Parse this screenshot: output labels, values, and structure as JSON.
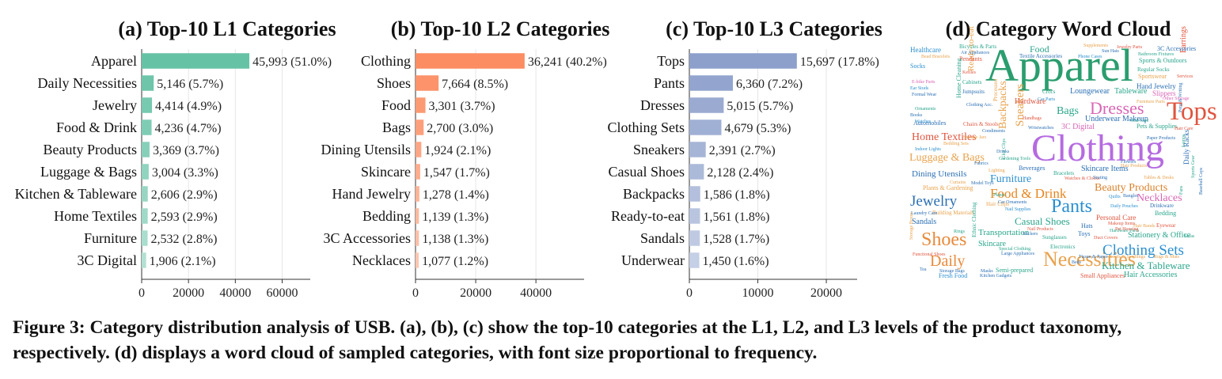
{
  "chart_data": [
    {
      "type": "bar",
      "orientation": "horizontal",
      "title": "(a) Top-10 L1 Categories",
      "color": "#66c2a5",
      "categories": [
        "Apparel",
        "Daily Necessities",
        "Jewelry",
        "Food & Drink",
        "Beauty Products",
        "Luggage & Bags",
        "Kitchen & Tableware",
        "Home Textiles",
        "Furniture",
        "3C Digital"
      ],
      "values": [
        45993,
        5146,
        4414,
        4236,
        3369,
        3004,
        2606,
        2593,
        2532,
        1906
      ],
      "value_labels": [
        "45,993 (51.0%)",
        "5,146 (5.7%)",
        "4,414 (4.9%)",
        "4,236 (4.7%)",
        "3,369 (3.7%)",
        "3,004 (3.3%)",
        "2,606 (2.9%)",
        "2,593 (2.9%)",
        "2,532 (2.8%)",
        "1,906 (2.1%)"
      ],
      "xlim": [
        0,
        72000
      ],
      "xticks": [
        0,
        20000,
        40000,
        60000
      ],
      "grid": true
    },
    {
      "type": "bar",
      "orientation": "horizontal",
      "title": "(b) Top-10 L2 Categories",
      "color": "#fc8d62",
      "categories": [
        "Clothing",
        "Shoes",
        "Food",
        "Bags",
        "Dining Utensils",
        "Skincare",
        "Hand Jewelry",
        "Bedding",
        "3C Accessories",
        "Necklaces"
      ],
      "values": [
        36241,
        7664,
        3301,
        2700,
        1924,
        1547,
        1278,
        1139,
        1138,
        1077
      ],
      "value_labels": [
        "36,241 (40.2%)",
        "7,664 (8.5%)",
        "3,301 (3.7%)",
        "2,700 (3.0%)",
        "1,924 (2.1%)",
        "1,547 (1.7%)",
        "1,278 (1.4%)",
        "1,139 (1.3%)",
        "1,138 (1.3%)",
        "1,077 (1.2%)"
      ],
      "xlim": [
        0,
        56000
      ],
      "xticks": [
        0,
        20000,
        40000
      ],
      "grid": true
    },
    {
      "type": "bar",
      "orientation": "horizontal",
      "title": "(c) Top-10 L3 Categories",
      "color": "#8da0cb",
      "categories": [
        "Tops",
        "Pants",
        "Dresses",
        "Clothing Sets",
        "Sneakers",
        "Casual Shoes",
        "Backpacks",
        "Ready-to-eat",
        "Sandals",
        "Underwear"
      ],
      "values": [
        15697,
        6360,
        5015,
        4679,
        2391,
        2128,
        1586,
        1561,
        1528,
        1450
      ],
      "value_labels": [
        "15,697 (17.8%)",
        "6,360 (7.2%)",
        "5,015 (5.7%)",
        "4,679 (5.3%)",
        "2,391 (2.7%)",
        "2,128 (2.4%)",
        "1,586 (1.8%)",
        "1,561 (1.8%)",
        "1,528 (1.7%)",
        "1,450 (1.6%)"
      ],
      "xlim": [
        0,
        24500
      ],
      "xticks": [
        0,
        10000,
        20000
      ],
      "grid": true
    },
    {
      "type": "wordcloud",
      "title": "(d) Category Word Cloud",
      "words": [
        {
          "text": "Apparel",
          "color": "#2a9d6e",
          "rot": 0
        },
        {
          "text": "Clothing",
          "color": "#b56be0",
          "rot": 0
        },
        {
          "text": "Tops",
          "color": "#e0553f",
          "rot": 0
        },
        {
          "text": "Necessities",
          "color": "#e8a24d",
          "rot": 0
        },
        {
          "text": "Dresses",
          "color": "#d966b5",
          "rot": 0
        },
        {
          "text": "Shoes",
          "color": "#e88a3a",
          "rot": 0
        },
        {
          "text": "Pants",
          "color": "#2b8fcf",
          "rot": 0
        },
        {
          "text": "Clothing Sets",
          "color": "#2b8fcf",
          "rot": 0
        },
        {
          "text": "Daily",
          "color": "#e88a3a",
          "rot": 0
        },
        {
          "text": "Jewelry",
          "color": "#2b6fb3",
          "rot": 0
        },
        {
          "text": "Food & Drink",
          "color": "#e8851f",
          "rot": 0
        },
        {
          "text": "Beauty Products",
          "color": "#d9822b",
          "rot": 0
        },
        {
          "text": "Home Textiles",
          "color": "#e0553f",
          "rot": 0
        },
        {
          "text": "Luggage & Bags",
          "color": "#e8a24d",
          "rot": 0
        },
        {
          "text": "Kitchen & Tableware",
          "color": "#2aa58c",
          "rot": 0
        },
        {
          "text": "Furniture",
          "color": "#2b8fcf",
          "rot": 0
        },
        {
          "text": "Bags",
          "color": "#2aa58c",
          "rot": 0
        },
        {
          "text": "Casual Shoes",
          "color": "#2aa58c",
          "rot": 0
        },
        {
          "text": "Necklaces",
          "color": "#d966b5",
          "rot": 0
        },
        {
          "text": "Dining Utensils",
          "color": "#2b6fb3",
          "rot": 0
        },
        {
          "text": "Sneakers",
          "color": "#e8a24d",
          "rot": -90
        },
        {
          "text": "Backpacks",
          "color": "#e8a24d",
          "rot": -90
        },
        {
          "text": "Food",
          "color": "#2aa58c",
          "rot": 0
        },
        {
          "text": "Transportation",
          "color": "#2aa58c",
          "rot": 0
        },
        {
          "text": "Stationery & Office",
          "color": "#2aa58c",
          "rot": 0
        },
        {
          "text": "Hair Accessories",
          "color": "#2aa58c",
          "rot": 0
        },
        {
          "text": "Underwear",
          "color": "#2b6fb3",
          "rot": 0
        },
        {
          "text": "3C Digital",
          "color": "#d966b5",
          "rot": 0
        },
        {
          "text": "Loungewear",
          "color": "#2b6fb3",
          "rot": 0
        },
        {
          "text": "Tableware",
          "color": "#2aa58c",
          "rot": 0
        },
        {
          "text": "Skincare",
          "color": "#2aa58c",
          "rot": 0
        },
        {
          "text": "Skincare Items",
          "color": "#2b6fb3",
          "rot": 0
        },
        {
          "text": "Hardware",
          "color": "#e0553f",
          "rot": 0
        },
        {
          "text": "Sandals",
          "color": "#2b6fb3",
          "rot": 0
        },
        {
          "text": "Healthcare",
          "color": "#2b8fcf",
          "rot": 0
        },
        {
          "text": "Hand Jewelry",
          "color": "#2b6fb3",
          "rot": 0
        },
        {
          "text": "Sportswear",
          "color": "#e8a24d",
          "rot": 0
        },
        {
          "text": "Personal Care",
          "color": "#e0553f",
          "rot": 0
        },
        {
          "text": "Bedding",
          "color": "#2aa58c",
          "rot": 0
        },
        {
          "text": "Ready-to-eat",
          "color": "#e8a24d",
          "rot": -90
        },
        {
          "text": "Beverages",
          "color": "#2b6fb3",
          "rot": 0
        },
        {
          "text": "Plants & Gardening",
          "color": "#e8a24d",
          "rot": 0
        },
        {
          "text": "Pets & Supplies",
          "color": "#2aa58c",
          "rot": 0
        },
        {
          "text": "Sports & Outdoors",
          "color": "#2aa58c",
          "rot": 0
        },
        {
          "text": "Earrings",
          "color": "#e0553f",
          "rot": -90
        },
        {
          "text": "Pendants",
          "color": "#e0553f",
          "rot": 0
        },
        {
          "text": "Socks",
          "color": "#2b8fcf",
          "rot": 0
        },
        {
          "text": "Regular Socks",
          "color": "#2aa58c",
          "rot": 0
        },
        {
          "text": "Slippers",
          "color": "#d966b5",
          "rot": 0
        },
        {
          "text": "Underwear Makeup",
          "color": "#2b6fb3",
          "rot": 0
        },
        {
          "text": "Automobiles",
          "color": "#2b6fb3",
          "rot": 0
        },
        {
          "text": "Fresh Food",
          "color": "#2b8fcf",
          "rot": 0
        },
        {
          "text": "Small Appliances",
          "color": "#e0553f",
          "rot": 0
        },
        {
          "text": "Semi-prepared",
          "color": "#2aa58c",
          "rot": 0
        },
        {
          "text": "Electronics",
          "color": "#2aa58c",
          "rot": 0
        },
        {
          "text": "Sunglasses",
          "color": "#2aa58c",
          "rot": 0
        },
        {
          "text": "Toys",
          "color": "#2b6fb3",
          "rot": 0
        },
        {
          "text": "Hats",
          "color": "#2b6fb3",
          "rot": 0
        },
        {
          "text": "Building Materials",
          "color": "#e8a24d",
          "rot": 0
        },
        {
          "text": "Laundry Care",
          "color": "#2b6fb3",
          "rot": 0
        },
        {
          "text": "Hair Clips",
          "color": "#e8a24d",
          "rot": 0
        },
        {
          "text": "Bracelets",
          "color": "#2aa58c",
          "rot": 0
        },
        {
          "text": "Fabrics",
          "color": "#2b6fb3",
          "rot": 0
        },
        {
          "text": "Lighting",
          "color": "#e8a24d",
          "rot": 0
        },
        {
          "text": "Indoor Lights",
          "color": "#2b8fcf",
          "rot": 0
        },
        {
          "text": "Bedding Sets",
          "color": "#e8a24d",
          "rot": 0
        },
        {
          "text": "Home Cleaning",
          "color": "#2aa58c",
          "rot": -90
        },
        {
          "text": "3C Accessories",
          "color": "#2b6fb3",
          "rot": 0
        },
        {
          "text": "Bicycles & Parts",
          "color": "#2aa58c",
          "rot": 0
        },
        {
          "text": "Supplements",
          "color": "#e8a24d",
          "rot": 0
        },
        {
          "text": "Jewelry Parts",
          "color": "#e0553f",
          "rot": 0
        },
        {
          "text": "Textile Accessories",
          "color": "#2b6fb3",
          "rot": 0
        },
        {
          "text": "Phone Cases",
          "color": "#2b8fcf",
          "rot": 0
        },
        {
          "text": "Cabinets",
          "color": "#2aa58c",
          "rot": 0
        },
        {
          "text": "Jumpsuits",
          "color": "#2b6fb3",
          "rot": 0
        },
        {
          "text": "Crocs",
          "color": "#2aa58c",
          "rot": 0
        },
        {
          "text": "Car Parts",
          "color": "#2b8fcf",
          "rot": 0
        },
        {
          "text": "Chairs & Stools",
          "color": "#e0553f",
          "rot": 0
        },
        {
          "text": "Storage Jars",
          "color": "#e8a24d",
          "rot": 0
        },
        {
          "text": "Handbags",
          "color": "#e0553f",
          "rot": 0
        },
        {
          "text": "Condiments",
          "color": "#2b6fb3",
          "rot": 0
        },
        {
          "text": "Wristwatches",
          "color": "#2b6fb3",
          "rot": 0
        },
        {
          "text": "Kettles",
          "color": "#e0553f",
          "rot": 0
        },
        {
          "text": "E-bike Parts",
          "color": "#d966b5",
          "rot": 0
        },
        {
          "text": "Ear Studs",
          "color": "#2b8fcf",
          "rot": 0
        },
        {
          "text": "Formal Wear",
          "color": "#2b6fb3",
          "rot": 0
        },
        {
          "text": "Ornaments",
          "color": "#2aa58c",
          "rot": 0
        },
        {
          "text": "Books",
          "color": "#2b6fb3",
          "rot": 0
        },
        {
          "text": "Watches",
          "color": "#2b8fcf",
          "rot": 0
        },
        {
          "text": "Bead Bracelets",
          "color": "#e8a24d",
          "rot": 0
        },
        {
          "text": "Air Appliances",
          "color": "#2b6fb3",
          "rot": 0
        },
        {
          "text": "Bathroom Fixtures",
          "color": "#2aa58c",
          "rot": 0
        },
        {
          "text": "Sun Hats",
          "color": "#2b6fb3",
          "rot": 0
        },
        {
          "text": "Services",
          "color": "#e0553f",
          "rot": 0
        },
        {
          "text": "Furniture Parts",
          "color": "#e8a24d",
          "rot": 0
        },
        {
          "text": "Other Storage",
          "color": "#d966b5",
          "rot": 0
        },
        {
          "text": "Oral Care",
          "color": "#2aa58c",
          "rot": 0
        },
        {
          "text": "Hair Care",
          "color": "#e0553f",
          "rot": 0
        },
        {
          "text": "Paper Products",
          "color": "#2b6fb3",
          "rot": 0
        },
        {
          "text": "Pens & Writing",
          "color": "#2b6fb3",
          "rot": -90
        },
        {
          "text": "Hair Products",
          "color": "#e8a24d",
          "rot": 0
        },
        {
          "text": "Daily Racks",
          "color": "#2b6fb3",
          "rot": -90
        },
        {
          "text": "Tables & Desks",
          "color": "#e8a24d",
          "rot": 0
        },
        {
          "text": "Curtains",
          "color": "#e8a24d",
          "rot": 0
        },
        {
          "text": "Model Toys",
          "color": "#2b6fb3",
          "rot": 0
        },
        {
          "text": "Gardening Tools",
          "color": "#2aa58c",
          "rot": 0
        },
        {
          "text": "Drinkware",
          "color": "#2b6fb3",
          "rot": 0
        },
        {
          "text": "Daily Pouches",
          "color": "#2b8fcf",
          "rot": 0
        },
        {
          "text": "Bangles",
          "color": "#2b6fb3",
          "rot": 0
        },
        {
          "text": "Quilts",
          "color": "#2b8fcf",
          "rot": 0
        },
        {
          "text": "Hardware Parts",
          "color": "#2aa58c",
          "rot": 0
        },
        {
          "text": "Nail Products",
          "color": "#e0553f",
          "rot": 0
        },
        {
          "text": "Special Clothing",
          "color": "#2aa58c",
          "rot": 0
        },
        {
          "text": "Functional Shoes",
          "color": "#e0553f",
          "rot": 0
        },
        {
          "text": "Storage Boxes",
          "color": "#e8a24d",
          "rot": -90
        },
        {
          "text": "Storage Bags",
          "color": "#2b6fb3",
          "rot": 0
        },
        {
          "text": "Masks",
          "color": "#2b6fb3",
          "rot": 0
        },
        {
          "text": "Kitchen Gadgets",
          "color": "#2b6fb3",
          "rot": 0
        },
        {
          "text": "Large Appliances",
          "color": "#2b6fb3",
          "rot": 0
        },
        {
          "text": "Tissue & Paper",
          "color": "#2b6fb3",
          "rot": 0
        },
        {
          "text": "Seeds & Seedlings",
          "color": "#e8a24d",
          "rot": 0
        },
        {
          "text": "Rugs & Mats",
          "color": "#e8a24d",
          "rot": 0
        },
        {
          "text": "Eyewear",
          "color": "#e0553f",
          "rot": 0
        },
        {
          "text": "Sofas",
          "color": "#2aa58c",
          "rot": 0
        },
        {
          "text": "Duct Covers",
          "color": "#e0553f",
          "rot": 0
        },
        {
          "text": "Pet Housing",
          "color": "#e0553f",
          "rot": 0
        },
        {
          "text": "Makeup Items",
          "color": "#e0553f",
          "rot": 0
        },
        {
          "text": "Hair Bands",
          "color": "#e8a24d",
          "rot": 0
        },
        {
          "text": "Baseball Caps",
          "color": "#2b6fb3",
          "rot": -90
        },
        {
          "text": "Rings",
          "color": "#2aa58c",
          "rot": 0
        },
        {
          "text": "Tea",
          "color": "#2b6fb3",
          "rot": 0
        },
        {
          "text": "Stickers",
          "color": "#2b6fb3",
          "rot": 0
        },
        {
          "text": "Car Ornaments",
          "color": "#2b6fb3",
          "rot": 0
        },
        {
          "text": "Nail Supplies",
          "color": "#2b8fcf",
          "rot": 0
        },
        {
          "text": "Ethnic Clothing",
          "color": "#2aa58c",
          "rot": -90
        },
        {
          "text": "Clothing Acc.",
          "color": "#2b6fb3",
          "rot": 0
        },
        {
          "text": "Watches & Clocks",
          "color": "#e0553f",
          "rot": 0
        },
        {
          "text": "Seating",
          "color": "#2b6fb3",
          "rot": 0
        },
        {
          "text": "Flowers",
          "color": "#2b6fb3",
          "rot": 0
        },
        {
          "text": "Drinks",
          "color": "#2b6fb3",
          "rot": 0
        },
        {
          "text": "Plants",
          "color": "#2aa58c",
          "rot": 0
        },
        {
          "text": "Beds",
          "color": "#2b6fb3",
          "rot": 0
        },
        {
          "text": "Processed",
          "color": "#e8a24d",
          "rot": -90
        },
        {
          "text": "Glue Clips",
          "color": "#2aa58c",
          "rot": -90
        },
        {
          "text": "Sports Gear",
          "color": "#2aa58c",
          "rot": -90
        },
        {
          "text": "Lamps",
          "color": "#2aa58c",
          "rot": -90
        },
        {
          "text": "Fans",
          "color": "#2aa58c",
          "rot": -90
        }
      ]
    }
  ],
  "caption": "Figure 3: Category distribution analysis of USB. (a), (b), (c) show the top-10 categories at the L1, L2, and L3 levels of the product taxonomy, respectively. (d) displays a word cloud of sampled categories, with font size proportional to frequency."
}
